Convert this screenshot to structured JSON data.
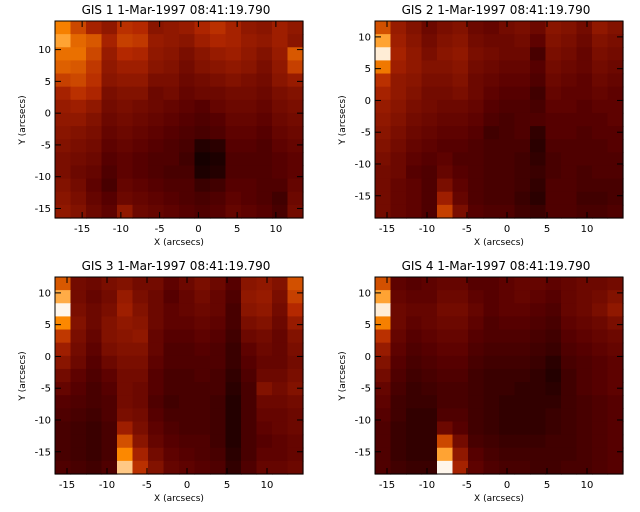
{
  "chart_data": [
    {
      "type": "heatmap",
      "title": "GIS 1  1-Mar-1997 08:41:19.790",
      "xlabel": "X (arcsecs)",
      "ylabel": "Y (arcsecs)",
      "xlim": [
        -18.5,
        13.5
      ],
      "ylim": [
        -16.5,
        14.5
      ],
      "xticks": [
        "-15",
        "-10",
        "-5",
        "0",
        "5",
        "10"
      ],
      "yticks": [
        "-15",
        "-10",
        "-5",
        "0",
        "5",
        "10"
      ],
      "x_cells": 16,
      "y_cells": 15,
      "colormap": [
        "#000000",
        "#5a0000",
        "#b42800",
        "#ff8c00",
        "#ffffff"
      ],
      "intensity": [
        [
          0.72,
          0.58,
          0.46,
          0.4,
          0.52,
          0.5,
          0.38,
          0.4,
          0.42,
          0.48,
          0.52,
          0.46,
          0.4,
          0.38,
          0.44,
          0.4
        ],
        [
          0.8,
          0.66,
          0.62,
          0.46,
          0.56,
          0.54,
          0.42,
          0.4,
          0.38,
          0.44,
          0.48,
          0.46,
          0.42,
          0.4,
          0.44,
          0.38
        ],
        [
          0.68,
          0.68,
          0.58,
          0.42,
          0.5,
          0.48,
          0.4,
          0.38,
          0.34,
          0.38,
          0.42,
          0.44,
          0.4,
          0.36,
          0.42,
          0.62
        ],
        [
          0.64,
          0.62,
          0.54,
          0.4,
          0.44,
          0.44,
          0.38,
          0.36,
          0.32,
          0.36,
          0.38,
          0.4,
          0.38,
          0.34,
          0.4,
          0.56
        ],
        [
          0.56,
          0.58,
          0.52,
          0.38,
          0.4,
          0.4,
          0.34,
          0.34,
          0.3,
          0.32,
          0.34,
          0.36,
          0.34,
          0.32,
          0.38,
          0.42
        ],
        [
          0.46,
          0.52,
          0.48,
          0.34,
          0.36,
          0.36,
          0.3,
          0.32,
          0.28,
          0.3,
          0.3,
          0.32,
          0.32,
          0.3,
          0.34,
          0.36
        ],
        [
          0.42,
          0.44,
          0.4,
          0.32,
          0.34,
          0.32,
          0.3,
          0.28,
          0.26,
          0.24,
          0.28,
          0.3,
          0.3,
          0.28,
          0.32,
          0.34
        ],
        [
          0.4,
          0.4,
          0.36,
          0.3,
          0.32,
          0.3,
          0.28,
          0.26,
          0.24,
          0.22,
          0.24,
          0.28,
          0.28,
          0.26,
          0.3,
          0.32
        ],
        [
          0.38,
          0.36,
          0.34,
          0.28,
          0.3,
          0.28,
          0.26,
          0.24,
          0.22,
          0.2,
          0.22,
          0.26,
          0.26,
          0.24,
          0.28,
          0.3
        ],
        [
          0.36,
          0.34,
          0.32,
          0.26,
          0.28,
          0.26,
          0.24,
          0.22,
          0.2,
          0.1,
          0.12,
          0.24,
          0.24,
          0.22,
          0.26,
          0.28
        ],
        [
          0.34,
          0.32,
          0.3,
          0.24,
          0.26,
          0.24,
          0.22,
          0.22,
          0.18,
          0.06,
          0.08,
          0.22,
          0.22,
          0.22,
          0.24,
          0.26
        ],
        [
          0.34,
          0.3,
          0.28,
          0.22,
          0.26,
          0.24,
          0.22,
          0.2,
          0.2,
          0.08,
          0.1,
          0.22,
          0.22,
          0.22,
          0.24,
          0.26
        ],
        [
          0.36,
          0.32,
          0.26,
          0.2,
          0.28,
          0.26,
          0.24,
          0.22,
          0.22,
          0.16,
          0.18,
          0.24,
          0.24,
          0.22,
          0.22,
          0.28
        ],
        [
          0.38,
          0.34,
          0.28,
          0.24,
          0.3,
          0.28,
          0.26,
          0.24,
          0.22,
          0.2,
          0.22,
          0.26,
          0.24,
          0.22,
          0.18,
          0.3
        ],
        [
          0.4,
          0.36,
          0.3,
          0.26,
          0.4,
          0.3,
          0.28,
          0.26,
          0.24,
          0.22,
          0.24,
          0.28,
          0.26,
          0.24,
          0.2,
          0.32
        ]
      ]
    },
    {
      "type": "heatmap",
      "title": "GIS 2  1-Mar-1997 08:41:19.790",
      "xlabel": "X (arcsecs)",
      "ylabel": "Y (arcsecs)",
      "xlim": [
        -16.5,
        14.5
      ],
      "ylim": [
        -18.5,
        12.5
      ],
      "xticks": [
        "-15",
        "-10",
        "-5",
        "0",
        "5",
        "10"
      ],
      "yticks": [
        "-15",
        "-10",
        "-5",
        "0",
        "5",
        "10"
      ],
      "x_cells": 16,
      "y_cells": 15,
      "colormap": [
        "#000000",
        "#5a0000",
        "#b42800",
        "#ff8c00",
        "#ffffff"
      ],
      "intensity": [
        [
          0.6,
          0.42,
          0.36,
          0.3,
          0.34,
          0.36,
          0.3,
          0.28,
          0.32,
          0.34,
          0.3,
          0.38,
          0.36,
          0.32,
          0.4,
          0.36
        ],
        [
          0.8,
          0.44,
          0.38,
          0.32,
          0.36,
          0.38,
          0.32,
          0.3,
          0.3,
          0.32,
          0.26,
          0.36,
          0.34,
          0.3,
          0.36,
          0.34
        ],
        [
          0.96,
          0.46,
          0.4,
          0.34,
          0.38,
          0.4,
          0.34,
          0.32,
          0.3,
          0.3,
          0.2,
          0.34,
          0.32,
          0.28,
          0.34,
          0.32
        ],
        [
          0.7,
          0.44,
          0.4,
          0.36,
          0.36,
          0.38,
          0.32,
          0.3,
          0.28,
          0.28,
          0.24,
          0.32,
          0.3,
          0.28,
          0.32,
          0.3
        ],
        [
          0.52,
          0.4,
          0.38,
          0.34,
          0.34,
          0.36,
          0.3,
          0.28,
          0.26,
          0.26,
          0.22,
          0.3,
          0.28,
          0.26,
          0.3,
          0.28
        ],
        [
          0.46,
          0.4,
          0.36,
          0.32,
          0.32,
          0.34,
          0.3,
          0.26,
          0.24,
          0.24,
          0.18,
          0.28,
          0.26,
          0.26,
          0.28,
          0.26
        ],
        [
          0.42,
          0.38,
          0.34,
          0.32,
          0.3,
          0.3,
          0.28,
          0.24,
          0.22,
          0.22,
          0.2,
          0.26,
          0.26,
          0.24,
          0.26,
          0.26
        ],
        [
          0.4,
          0.36,
          0.32,
          0.3,
          0.28,
          0.28,
          0.26,
          0.22,
          0.2,
          0.22,
          0.22,
          0.24,
          0.24,
          0.24,
          0.24,
          0.26
        ],
        [
          0.38,
          0.34,
          0.3,
          0.28,
          0.26,
          0.26,
          0.24,
          0.18,
          0.2,
          0.22,
          0.14,
          0.24,
          0.24,
          0.22,
          0.24,
          0.24
        ],
        [
          0.36,
          0.32,
          0.28,
          0.26,
          0.24,
          0.24,
          0.22,
          0.2,
          0.2,
          0.2,
          0.12,
          0.22,
          0.22,
          0.22,
          0.22,
          0.24
        ],
        [
          0.34,
          0.3,
          0.26,
          0.24,
          0.26,
          0.22,
          0.22,
          0.2,
          0.2,
          0.18,
          0.14,
          0.2,
          0.22,
          0.22,
          0.22,
          0.22
        ],
        [
          0.32,
          0.3,
          0.24,
          0.22,
          0.28,
          0.24,
          0.22,
          0.2,
          0.2,
          0.18,
          0.16,
          0.2,
          0.22,
          0.2,
          0.22,
          0.22
        ],
        [
          0.32,
          0.28,
          0.26,
          0.22,
          0.34,
          0.26,
          0.22,
          0.2,
          0.2,
          0.18,
          0.14,
          0.22,
          0.22,
          0.2,
          0.2,
          0.2
        ],
        [
          0.32,
          0.28,
          0.26,
          0.22,
          0.44,
          0.28,
          0.22,
          0.2,
          0.2,
          0.16,
          0.12,
          0.22,
          0.22,
          0.18,
          0.18,
          0.2
        ],
        [
          0.32,
          0.28,
          0.26,
          0.22,
          0.56,
          0.34,
          0.24,
          0.22,
          0.22,
          0.18,
          0.16,
          0.22,
          0.22,
          0.2,
          0.2,
          0.22
        ]
      ]
    },
    {
      "type": "heatmap",
      "title": "GIS 3  1-Mar-1997 08:41:19.790",
      "xlabel": "X (arcsecs)",
      "ylabel": "Y (arcsecs)",
      "xlim": [
        -16.5,
        14.5
      ],
      "ylim": [
        -18.5,
        12.5
      ],
      "xticks": [
        "-15",
        "-10",
        "-5",
        "0",
        "5",
        "10"
      ],
      "yticks": [
        "-15",
        "-10",
        "-5",
        "0",
        "5",
        "10"
      ],
      "x_cells": 16,
      "y_cells": 15,
      "colormap": [
        "#000000",
        "#5a0000",
        "#b42800",
        "#ff8c00",
        "#ffffff"
      ],
      "intensity": [
        [
          0.62,
          0.32,
          0.3,
          0.34,
          0.36,
          0.32,
          0.32,
          0.26,
          0.3,
          0.34,
          0.3,
          0.24,
          0.38,
          0.4,
          0.36,
          0.6
        ],
        [
          0.82,
          0.32,
          0.28,
          0.32,
          0.42,
          0.34,
          0.3,
          0.24,
          0.28,
          0.32,
          0.28,
          0.22,
          0.4,
          0.42,
          0.34,
          0.56
        ],
        [
          0.98,
          0.34,
          0.3,
          0.34,
          0.44,
          0.36,
          0.3,
          0.26,
          0.28,
          0.3,
          0.28,
          0.2,
          0.38,
          0.4,
          0.32,
          0.5
        ],
        [
          0.74,
          0.36,
          0.3,
          0.36,
          0.4,
          0.38,
          0.3,
          0.26,
          0.26,
          0.28,
          0.26,
          0.2,
          0.34,
          0.36,
          0.3,
          0.42
        ],
        [
          0.54,
          0.34,
          0.28,
          0.36,
          0.38,
          0.4,
          0.28,
          0.24,
          0.24,
          0.26,
          0.24,
          0.18,
          0.3,
          0.32,
          0.28,
          0.36
        ],
        [
          0.44,
          0.32,
          0.26,
          0.34,
          0.36,
          0.36,
          0.28,
          0.22,
          0.22,
          0.24,
          0.22,
          0.16,
          0.26,
          0.3,
          0.28,
          0.34
        ],
        [
          0.38,
          0.3,
          0.24,
          0.3,
          0.34,
          0.34,
          0.26,
          0.22,
          0.22,
          0.22,
          0.22,
          0.16,
          0.24,
          0.28,
          0.28,
          0.32
        ],
        [
          0.32,
          0.26,
          0.22,
          0.26,
          0.32,
          0.32,
          0.24,
          0.2,
          0.2,
          0.22,
          0.2,
          0.14,
          0.22,
          0.3,
          0.3,
          0.34
        ],
        [
          0.28,
          0.24,
          0.2,
          0.24,
          0.32,
          0.3,
          0.24,
          0.2,
          0.2,
          0.2,
          0.2,
          0.12,
          0.2,
          0.36,
          0.32,
          0.36
        ],
        [
          0.24,
          0.22,
          0.2,
          0.22,
          0.32,
          0.3,
          0.22,
          0.18,
          0.2,
          0.2,
          0.18,
          0.1,
          0.2,
          0.3,
          0.3,
          0.32
        ],
        [
          0.22,
          0.2,
          0.18,
          0.22,
          0.34,
          0.32,
          0.24,
          0.2,
          0.2,
          0.2,
          0.18,
          0.1,
          0.2,
          0.28,
          0.28,
          0.3
        ],
        [
          0.2,
          0.18,
          0.16,
          0.2,
          0.44,
          0.34,
          0.26,
          0.22,
          0.2,
          0.2,
          0.18,
          0.1,
          0.2,
          0.26,
          0.28,
          0.3
        ],
        [
          0.2,
          0.18,
          0.16,
          0.2,
          0.6,
          0.38,
          0.28,
          0.24,
          0.22,
          0.22,
          0.18,
          0.1,
          0.2,
          0.24,
          0.26,
          0.28
        ],
        [
          0.2,
          0.18,
          0.16,
          0.2,
          0.74,
          0.46,
          0.32,
          0.26,
          0.24,
          0.22,
          0.2,
          0.12,
          0.2,
          0.26,
          0.26,
          0.28
        ],
        [
          0.22,
          0.2,
          0.18,
          0.22,
          0.88,
          0.52,
          0.36,
          0.28,
          0.26,
          0.24,
          0.22,
          0.14,
          0.22,
          0.28,
          0.28,
          0.3
        ]
      ]
    },
    {
      "type": "heatmap",
      "title": "GIS 4  1-Mar-1997 08:41:19.790",
      "xlabel": "X (arcsecs)",
      "ylabel": "Y (arcsecs)",
      "xlim": [
        -16.5,
        14.5
      ],
      "ylim": [
        -18.5,
        12.5
      ],
      "xticks": [
        "-15",
        "-10",
        "-5",
        "0",
        "5",
        "10"
      ],
      "yticks": [
        "-15",
        "-10",
        "-5",
        "0",
        "5",
        "10"
      ],
      "x_cells": 16,
      "y_cells": 15,
      "colormap": [
        "#000000",
        "#5a0000",
        "#b42800",
        "#ff8c00",
        "#ffffff"
      ],
      "intensity": [
        [
          0.6,
          0.26,
          0.24,
          0.26,
          0.28,
          0.28,
          0.24,
          0.24,
          0.26,
          0.28,
          0.28,
          0.26,
          0.28,
          0.3,
          0.3,
          0.32
        ],
        [
          0.8,
          0.28,
          0.26,
          0.26,
          0.3,
          0.3,
          0.26,
          0.24,
          0.26,
          0.28,
          0.26,
          0.24,
          0.28,
          0.3,
          0.32,
          0.36
        ],
        [
          0.96,
          0.3,
          0.28,
          0.28,
          0.32,
          0.32,
          0.28,
          0.24,
          0.26,
          0.26,
          0.24,
          0.22,
          0.28,
          0.3,
          0.34,
          0.4
        ],
        [
          0.72,
          0.3,
          0.26,
          0.28,
          0.3,
          0.3,
          0.26,
          0.22,
          0.24,
          0.24,
          0.22,
          0.2,
          0.26,
          0.28,
          0.3,
          0.34
        ],
        [
          0.52,
          0.28,
          0.24,
          0.26,
          0.28,
          0.28,
          0.24,
          0.22,
          0.22,
          0.22,
          0.2,
          0.18,
          0.24,
          0.26,
          0.28,
          0.3
        ],
        [
          0.42,
          0.26,
          0.22,
          0.24,
          0.26,
          0.26,
          0.22,
          0.2,
          0.2,
          0.2,
          0.18,
          0.16,
          0.22,
          0.24,
          0.26,
          0.28
        ],
        [
          0.36,
          0.24,
          0.2,
          0.22,
          0.24,
          0.24,
          0.2,
          0.18,
          0.18,
          0.18,
          0.16,
          0.12,
          0.2,
          0.22,
          0.24,
          0.26
        ],
        [
          0.32,
          0.22,
          0.18,
          0.2,
          0.22,
          0.22,
          0.18,
          0.16,
          0.16,
          0.16,
          0.14,
          0.1,
          0.18,
          0.22,
          0.24,
          0.26
        ],
        [
          0.28,
          0.2,
          0.16,
          0.18,
          0.2,
          0.2,
          0.18,
          0.16,
          0.16,
          0.14,
          0.14,
          0.12,
          0.18,
          0.22,
          0.24,
          0.26
        ],
        [
          0.26,
          0.18,
          0.16,
          0.16,
          0.2,
          0.2,
          0.18,
          0.16,
          0.14,
          0.14,
          0.14,
          0.14,
          0.18,
          0.2,
          0.22,
          0.24
        ],
        [
          0.24,
          0.18,
          0.14,
          0.14,
          0.22,
          0.22,
          0.18,
          0.16,
          0.14,
          0.14,
          0.14,
          0.16,
          0.18,
          0.2,
          0.22,
          0.24
        ],
        [
          0.22,
          0.16,
          0.14,
          0.14,
          0.3,
          0.24,
          0.18,
          0.16,
          0.14,
          0.14,
          0.14,
          0.16,
          0.18,
          0.2,
          0.22,
          0.24
        ],
        [
          0.22,
          0.16,
          0.14,
          0.14,
          0.58,
          0.32,
          0.2,
          0.18,
          0.16,
          0.16,
          0.16,
          0.18,
          0.18,
          0.2,
          0.22,
          0.24
        ],
        [
          0.22,
          0.16,
          0.14,
          0.14,
          0.8,
          0.4,
          0.24,
          0.2,
          0.18,
          0.18,
          0.18,
          0.18,
          0.18,
          0.2,
          0.22,
          0.24
        ],
        [
          0.22,
          0.18,
          0.16,
          0.16,
          0.98,
          0.46,
          0.26,
          0.22,
          0.2,
          0.2,
          0.18,
          0.18,
          0.2,
          0.2,
          0.22,
          0.24
        ]
      ]
    }
  ]
}
